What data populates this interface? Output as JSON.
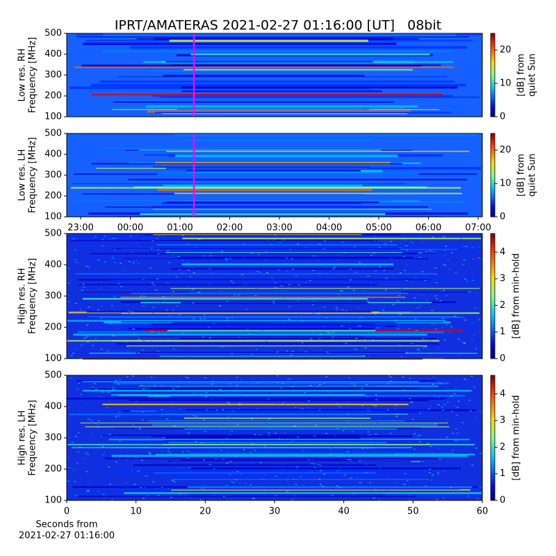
{
  "chart_data": [
    {
      "type": "heatmap",
      "title": "IPRT/AMATERAS 2021-02-27 01:16:00 [UT]   08bit",
      "ylabel": [
        "Low res. RH",
        "Frequency [MHz]"
      ],
      "ylim": [
        100,
        500
      ],
      "yticks": [
        100,
        200,
        300,
        400,
        500
      ],
      "colorbar": {
        "label": [
          "[dB] from",
          "quiet Sun"
        ],
        "lim": [
          0,
          25
        ],
        "ticks": [
          0,
          10,
          20
        ]
      }
    },
    {
      "type": "heatmap",
      "ylabel": [
        "Low res. LH",
        "Frequency [MHz]"
      ],
      "ylim": [
        100,
        500
      ],
      "yticks": [
        100,
        200,
        300,
        400,
        500
      ],
      "categories": [
        "23:00",
        "00:00",
        "01:00",
        "02:00",
        "03:00",
        "04:00",
        "05:00",
        "06:00",
        "07:00"
      ],
      "colorbar": {
        "label": [
          "[dB] from",
          "quiet Sun"
        ],
        "lim": [
          0,
          25
        ],
        "ticks": [
          0,
          10,
          20
        ]
      }
    },
    {
      "type": "heatmap",
      "ylabel": [
        "High res. RH",
        "Frequency [MHz]"
      ],
      "ylim": [
        100,
        500
      ],
      "yticks": [
        100,
        200,
        300,
        400,
        500
      ],
      "colorbar": {
        "label": [
          "[dB] from min-hold"
        ],
        "lim": [
          0,
          4.7
        ],
        "ticks": [
          0,
          1,
          2,
          3,
          4
        ]
      }
    },
    {
      "type": "heatmap",
      "ylabel": [
        "High res. LH",
        "Frequency [MHz]"
      ],
      "ylim": [
        100,
        500
      ],
      "yticks": [
        100,
        200,
        300,
        400,
        500
      ],
      "xlim": [
        0,
        60
      ],
      "xticks": [
        0,
        10,
        20,
        30,
        40,
        50,
        60
      ],
      "xlabel": [
        "Seconds from",
        "2021-02-27 01:16:00"
      ],
      "colorbar": {
        "label": [
          "[dB] from min-hold"
        ],
        "lim": [
          0,
          4.7
        ],
        "ticks": [
          0,
          1,
          2,
          3,
          4
        ]
      }
    }
  ]
}
